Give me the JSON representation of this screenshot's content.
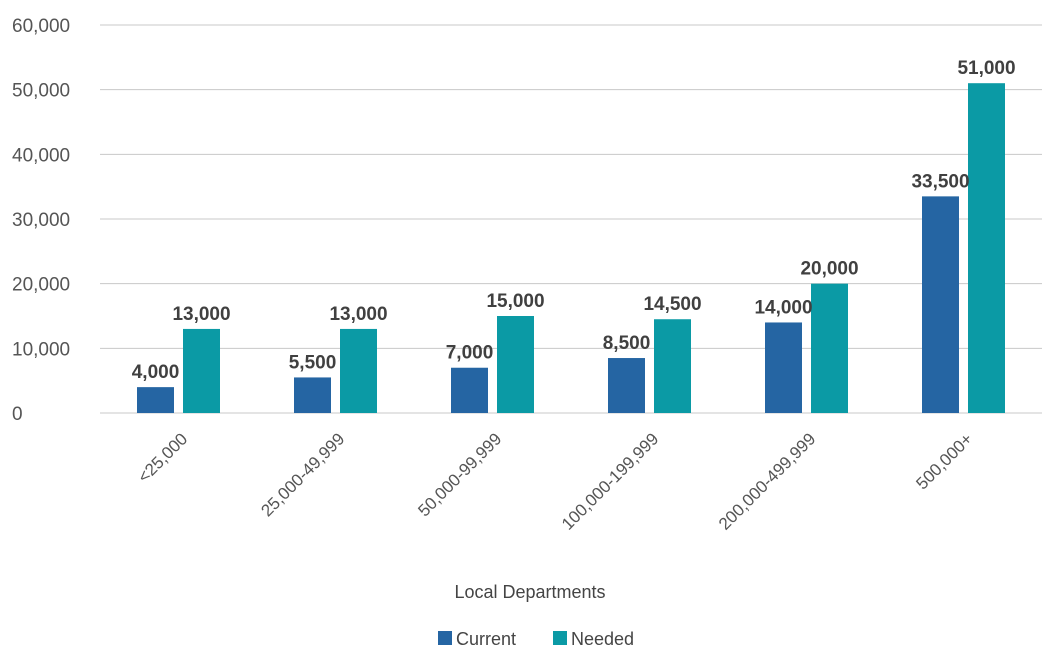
{
  "chart_data": {
    "type": "bar",
    "title": "",
    "xlabel": "Local Departments",
    "ylabel": "",
    "ylim": [
      0,
      60000
    ],
    "y_ticks": [
      0,
      10000,
      20000,
      30000,
      40000,
      50000,
      60000
    ],
    "y_tick_labels": [
      "0",
      "10,000",
      "20,000",
      "30,000",
      "40,000",
      "50,000",
      "60,000"
    ],
    "grid": true,
    "legend_position": "bottom",
    "categories": [
      "<25,000",
      "25,000-49,999",
      "50,000-99,999",
      "100,000-199,999",
      "200,000-499,999",
      "500,000+"
    ],
    "series": [
      {
        "name": "Current",
        "color": "#2565a3",
        "values": [
          4000,
          5500,
          7000,
          8500,
          14000,
          33500
        ],
        "labels": [
          "4,000",
          "5,500",
          "7,000",
          "8,500",
          "14,000",
          "33,500"
        ]
      },
      {
        "name": "Needed",
        "color": "#0b9aa5",
        "values": [
          13000,
          13000,
          15000,
          14500,
          20000,
          51000
        ],
        "labels": [
          "13,000",
          "13,000",
          "15,000",
          "14,500",
          "20,000",
          "51,000"
        ]
      }
    ]
  }
}
